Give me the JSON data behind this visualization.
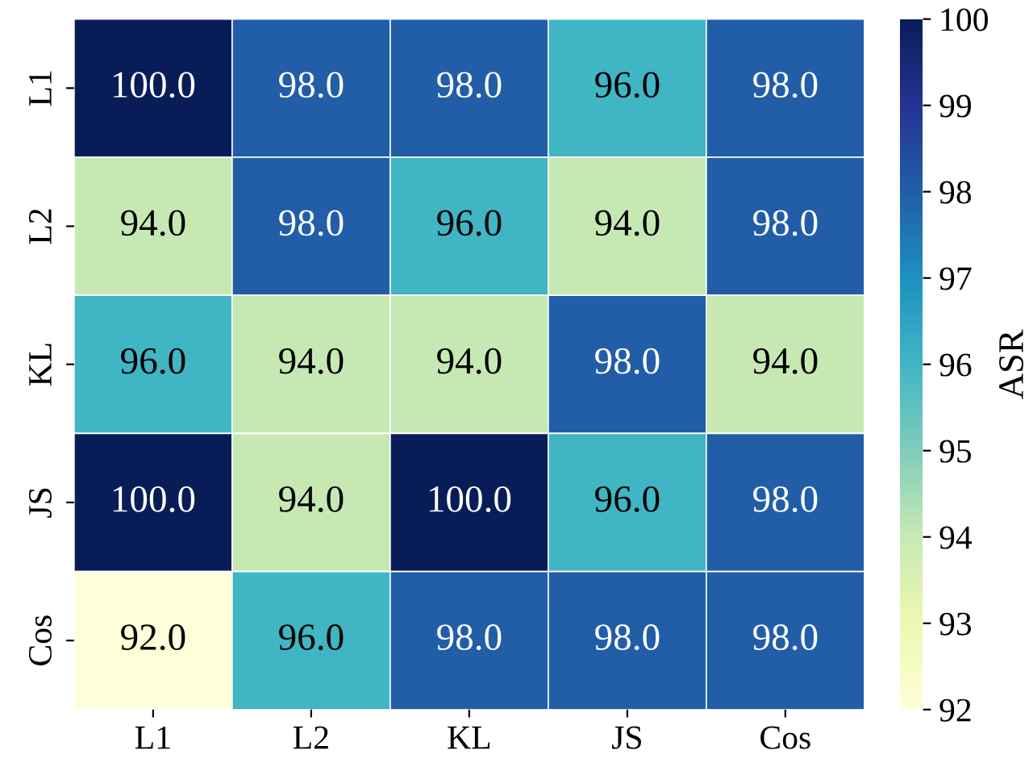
{
  "chart_data": {
    "type": "heatmap",
    "categories": [
      "L1",
      "L2",
      "KL",
      "JS",
      "Cos"
    ],
    "y_categories": [
      "L1",
      "L2",
      "KL",
      "JS",
      "Cos"
    ],
    "cells": [
      [
        100.0,
        98.0,
        98.0,
        96.0,
        98.0
      ],
      [
        94.0,
        98.0,
        96.0,
        94.0,
        98.0
      ],
      [
        96.0,
        94.0,
        94.0,
        98.0,
        94.0
      ],
      [
        100.0,
        94.0,
        100.0,
        96.0,
        98.0
      ],
      [
        92.0,
        96.0,
        98.0,
        98.0,
        98.0
      ]
    ],
    "cell_labels": [
      [
        "100.0",
        "98.0",
        "98.0",
        "96.0",
        "98.0"
      ],
      [
        "94.0",
        "98.0",
        "96.0",
        "94.0",
        "98.0"
      ],
      [
        "96.0",
        "94.0",
        "94.0",
        "98.0",
        "94.0"
      ],
      [
        "100.0",
        "94.0",
        "100.0",
        "96.0",
        "98.0"
      ],
      [
        "92.0",
        "96.0",
        "98.0",
        "98.0",
        "98.0"
      ]
    ],
    "clabel": "ASR",
    "clim": [
      92,
      100
    ],
    "cticks": [
      92,
      93,
      94,
      95,
      96,
      97,
      98,
      99,
      100
    ]
  }
}
